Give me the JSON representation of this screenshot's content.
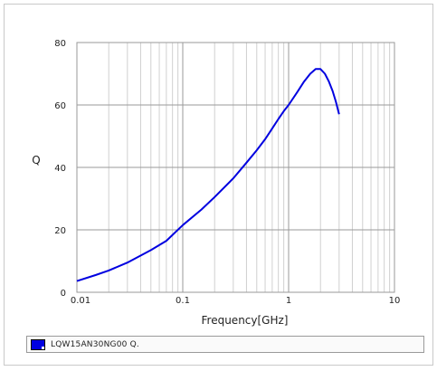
{
  "chart_data": {
    "type": "line",
    "title": "",
    "xlabel": "Frequency[GHz]",
    "ylabel": "Q",
    "xscale": "log",
    "xlim": [
      0.01,
      10
    ],
    "ylim": [
      0,
      80
    ],
    "xticks": [
      {
        "value": 0.01,
        "label": "0.01"
      },
      {
        "value": 0.1,
        "label": "0.1"
      },
      {
        "value": 1,
        "label": "1"
      },
      {
        "value": 10,
        "label": "10"
      }
    ],
    "yticks": [
      {
        "value": 0,
        "label": "0"
      },
      {
        "value": 20,
        "label": "20"
      },
      {
        "value": 40,
        "label": "40"
      },
      {
        "value": 60,
        "label": "60"
      },
      {
        "value": 80,
        "label": "80"
      }
    ],
    "grid": true,
    "legend_position": "bottom",
    "series": [
      {
        "name": "LQW15AN30NG00 Q.",
        "color": "#0000e0",
        "points": [
          [
            0.01,
            3.6
          ],
          [
            0.015,
            5.5
          ],
          [
            0.02,
            7.0
          ],
          [
            0.03,
            9.5
          ],
          [
            0.05,
            13.5
          ],
          [
            0.07,
            16.5
          ],
          [
            0.1,
            21.5
          ],
          [
            0.15,
            26.5
          ],
          [
            0.2,
            30.5
          ],
          [
            0.3,
            36.5
          ],
          [
            0.4,
            41.5
          ],
          [
            0.5,
            45.5
          ],
          [
            0.6,
            49.0
          ],
          [
            0.7,
            52.5
          ],
          [
            0.8,
            55.5
          ],
          [
            0.9,
            58.0
          ],
          [
            1.0,
            60.0
          ],
          [
            1.2,
            64.0
          ],
          [
            1.4,
            67.5
          ],
          [
            1.6,
            70.0
          ],
          [
            1.8,
            71.5
          ],
          [
            2.0,
            71.5
          ],
          [
            2.2,
            70.0
          ],
          [
            2.4,
            67.5
          ],
          [
            2.6,
            64.5
          ],
          [
            2.8,
            61.0
          ],
          [
            3.0,
            57.0
          ]
        ]
      }
    ]
  },
  "legend": {
    "label": "LQW15AN30NG00 Q.",
    "swatch_color": "#0000e0"
  }
}
